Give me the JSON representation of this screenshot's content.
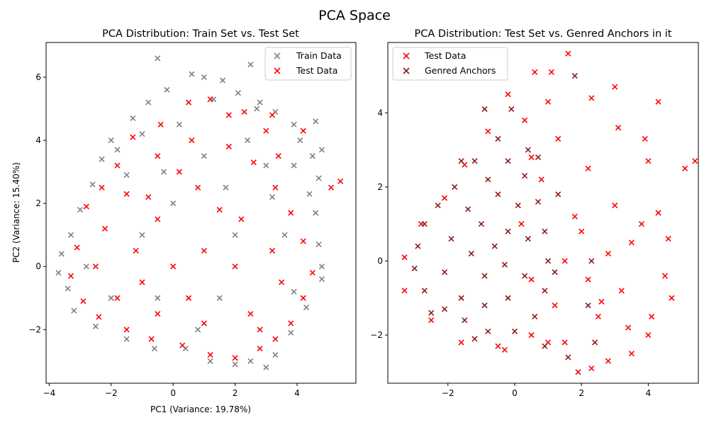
{
  "figure": {
    "suptitle": "PCA Space"
  },
  "chart_data": [
    {
      "type": "scatter",
      "title": "PCA Distribution: Train Set vs. Test Set",
      "xlabel": "PC1 (Variance: 19.78%)",
      "ylabel": "PC2 (Variance: 15.40%)",
      "xlim": [
        -4.1,
        5.9
      ],
      "ylim": [
        -3.7,
        7.1
      ],
      "xticks": [
        -4,
        -2,
        0,
        2,
        4
      ],
      "xtick_labels": [
        "−4",
        "−2",
        "0",
        "2",
        "4"
      ],
      "yticks": [
        -2,
        0,
        2,
        4,
        6
      ],
      "ytick_labels": [
        "−2",
        "0",
        "2",
        "4",
        "6"
      ],
      "grid": false,
      "legend_position": "top-right",
      "marker": "x",
      "series": [
        {
          "name": "Train Data",
          "color": "#808080",
          "points": [
            [
              -0.5,
              6.6
            ],
            [
              2.5,
              6.4
            ],
            [
              0.6,
              6.1
            ],
            [
              1.0,
              6.0
            ],
            [
              1.6,
              5.9
            ],
            [
              -0.2,
              5.6
            ],
            [
              2.1,
              5.5
            ],
            [
              -0.8,
              5.2
            ],
            [
              2.8,
              5.2
            ],
            [
              1.3,
              5.3
            ],
            [
              -1.3,
              4.7
            ],
            [
              3.3,
              4.9
            ],
            [
              3.9,
              4.5
            ],
            [
              4.6,
              4.6
            ],
            [
              -2.0,
              4.0
            ],
            [
              4.1,
              4.0
            ],
            [
              -1.8,
              3.7
            ],
            [
              4.8,
              3.7
            ],
            [
              -2.3,
              3.4
            ],
            [
              4.5,
              3.5
            ],
            [
              -2.6,
              2.6
            ],
            [
              4.7,
              2.8
            ],
            [
              -3.0,
              1.8
            ],
            [
              4.4,
              2.3
            ],
            [
              -3.3,
              1.0
            ],
            [
              4.6,
              1.7
            ],
            [
              -3.6,
              0.4
            ],
            [
              4.7,
              0.7
            ],
            [
              -3.7,
              -0.2
            ],
            [
              4.8,
              0.0
            ],
            [
              -3.4,
              -0.7
            ],
            [
              4.8,
              -0.4
            ],
            [
              -3.2,
              -1.4
            ],
            [
              4.3,
              -1.3
            ],
            [
              -2.5,
              -1.9
            ],
            [
              3.8,
              -2.1
            ],
            [
              -1.5,
              -2.3
            ],
            [
              3.3,
              -2.8
            ],
            [
              -0.6,
              -2.6
            ],
            [
              3.0,
              -3.2
            ],
            [
              0.4,
              -2.6
            ],
            [
              1.2,
              -3.0
            ],
            [
              2.0,
              -3.1
            ],
            [
              2.5,
              -3.0
            ],
            [
              -1.0,
              1.0
            ],
            [
              0.0,
              2.0
            ],
            [
              1.0,
              3.5
            ],
            [
              2.0,
              1.0
            ],
            [
              1.5,
              -1.0
            ],
            [
              -0.5,
              -1.0
            ],
            [
              3.0,
              3.2
            ],
            [
              2.4,
              4.0
            ],
            [
              0.2,
              4.5
            ],
            [
              -1.5,
              2.9
            ],
            [
              -2.8,
              0.0
            ],
            [
              3.6,
              1.0
            ],
            [
              3.9,
              -0.8
            ],
            [
              0.8,
              -2.0
            ],
            [
              -2.0,
              -1.0
            ],
            [
              1.7,
              2.5
            ],
            [
              3.2,
              2.2
            ],
            [
              -0.3,
              3.0
            ],
            [
              2.7,
              5.0
            ],
            [
              -1.0,
              4.2
            ],
            [
              3.9,
              3.2
            ]
          ]
        },
        {
          "name": "Test Data",
          "color": "#ff0000",
          "points": [
            [
              5.4,
              2.7
            ],
            [
              5.1,
              2.5
            ],
            [
              4.2,
              4.3
            ],
            [
              3.0,
              4.3
            ],
            [
              3.4,
              3.5
            ],
            [
              3.2,
              4.8
            ],
            [
              2.3,
              4.9
            ],
            [
              1.2,
              5.3
            ],
            [
              1.8,
              4.8
            ],
            [
              0.5,
              5.2
            ],
            [
              -0.4,
              4.5
            ],
            [
              -1.3,
              4.1
            ],
            [
              -1.8,
              3.2
            ],
            [
              -2.3,
              2.5
            ],
            [
              -2.8,
              1.9
            ],
            [
              -3.1,
              0.6
            ],
            [
              -3.3,
              -0.3
            ],
            [
              -2.9,
              -1.1
            ],
            [
              -2.4,
              -1.6
            ],
            [
              -1.5,
              -2.0
            ],
            [
              -0.7,
              -2.3
            ],
            [
              0.3,
              -2.5
            ],
            [
              1.2,
              -2.8
            ],
            [
              2.0,
              -2.9
            ],
            [
              2.8,
              -2.6
            ],
            [
              3.3,
              -2.3
            ],
            [
              3.8,
              -1.8
            ],
            [
              4.2,
              -1.0
            ],
            [
              4.5,
              -0.2
            ],
            [
              4.2,
              0.8
            ],
            [
              3.8,
              1.7
            ],
            [
              3.3,
              2.5
            ],
            [
              2.6,
              3.3
            ],
            [
              1.8,
              3.8
            ],
            [
              0.6,
              4.0
            ],
            [
              -0.5,
              3.5
            ],
            [
              -1.5,
              2.3
            ],
            [
              -2.2,
              1.2
            ],
            [
              -2.5,
              0.0
            ],
            [
              -1.8,
              -1.0
            ],
            [
              -0.5,
              -1.5
            ],
            [
              1.0,
              -1.8
            ],
            [
              2.5,
              -1.5
            ],
            [
              3.5,
              -0.5
            ],
            [
              3.2,
              0.5
            ],
            [
              2.2,
              1.5
            ],
            [
              0.8,
              2.5
            ],
            [
              -0.5,
              1.5
            ],
            [
              -1.2,
              0.5
            ],
            [
              0.0,
              0.0
            ],
            [
              1.0,
              0.5
            ],
            [
              2.0,
              0.0
            ],
            [
              0.5,
              -1.0
            ],
            [
              -1.0,
              -0.5
            ],
            [
              1.5,
              1.8
            ],
            [
              0.2,
              3.0
            ],
            [
              -0.8,
              2.2
            ],
            [
              2.8,
              -2.0
            ]
          ]
        }
      ]
    },
    {
      "type": "scatter",
      "title": "PCA Distribution: Test Set vs. Genred Anchors in it",
      "xlabel": "",
      "ylabel": "",
      "xlim": [
        -3.8,
        5.5
      ],
      "ylim": [
        -3.3,
        5.9
      ],
      "xticks": [
        -2,
        0,
        2,
        4
      ],
      "xtick_labels": [
        "−2",
        "0",
        "2",
        "4"
      ],
      "yticks": [
        -2,
        0,
        2,
        4
      ],
      "ytick_labels": [
        "−2",
        "0",
        "2",
        "4"
      ],
      "grid": false,
      "legend_position": "top-left",
      "marker": "x",
      "series": [
        {
          "name": "Test Data",
          "color": "#ff0000",
          "points": [
            [
              5.4,
              2.7
            ],
            [
              5.1,
              2.5
            ],
            [
              4.3,
              4.3
            ],
            [
              1.6,
              5.6
            ],
            [
              0.6,
              5.1
            ],
            [
              1.1,
              5.1
            ],
            [
              2.3,
              4.4
            ],
            [
              3.0,
              4.7
            ],
            [
              3.1,
              3.6
            ],
            [
              3.9,
              3.3
            ],
            [
              4.0,
              2.7
            ],
            [
              4.3,
              1.3
            ],
            [
              4.6,
              0.6
            ],
            [
              4.5,
              -0.4
            ],
            [
              4.7,
              -1.0
            ],
            [
              4.1,
              -1.5
            ],
            [
              4.0,
              -2.0
            ],
            [
              3.5,
              -2.5
            ],
            [
              2.8,
              -2.7
            ],
            [
              2.3,
              -2.9
            ],
            [
              1.9,
              -3.0
            ],
            [
              1.0,
              -2.2
            ],
            [
              -0.3,
              -2.4
            ],
            [
              -0.2,
              4.5
            ],
            [
              -0.8,
              3.5
            ],
            [
              -1.5,
              2.6
            ],
            [
              -2.1,
              1.7
            ],
            [
              -2.8,
              1.0
            ],
            [
              -3.3,
              0.1
            ],
            [
              -3.3,
              -0.8
            ],
            [
              -2.5,
              -1.6
            ],
            [
              -1.6,
              -2.2
            ],
            [
              -0.5,
              -2.3
            ],
            [
              0.5,
              -2.0
            ],
            [
              1.5,
              -2.2
            ],
            [
              2.5,
              -1.5
            ],
            [
              3.2,
              -0.8
            ],
            [
              3.5,
              0.5
            ],
            [
              3.0,
              1.5
            ],
            [
              2.2,
              2.5
            ],
            [
              1.3,
              3.3
            ],
            [
              0.3,
              3.8
            ],
            [
              1.5,
              0.0
            ],
            [
              2.2,
              -0.5
            ],
            [
              2.8,
              0.2
            ],
            [
              1.8,
              1.2
            ],
            [
              0.8,
              2.2
            ],
            [
              0.2,
              1.0
            ],
            [
              0.5,
              -0.5
            ],
            [
              1.2,
              -1.2
            ],
            [
              2.0,
              0.8
            ],
            [
              2.6,
              -1.1
            ],
            [
              3.4,
              -1.8
            ],
            [
              3.8,
              1.0
            ],
            [
              1.0,
              4.3
            ],
            [
              0.5,
              2.8
            ]
          ]
        },
        {
          "name": "Genred Anchors",
          "color": "#8b1a1a",
          "points": [
            [
              1.8,
              5.0
            ],
            [
              -0.9,
              4.1
            ],
            [
              -0.1,
              4.1
            ],
            [
              0.4,
              3.0
            ],
            [
              -0.5,
              3.3
            ],
            [
              -1.2,
              2.7
            ],
            [
              -1.8,
              2.0
            ],
            [
              -2.3,
              1.5
            ],
            [
              -2.7,
              1.0
            ],
            [
              -2.9,
              0.4
            ],
            [
              -3.0,
              -0.2
            ],
            [
              -2.7,
              -0.8
            ],
            [
              -2.1,
              -1.3
            ],
            [
              -1.5,
              -1.6
            ],
            [
              -0.8,
              -1.9
            ],
            [
              0.0,
              -1.9
            ],
            [
              0.6,
              -1.5
            ],
            [
              0.9,
              -0.8
            ],
            [
              1.0,
              0.0
            ],
            [
              0.9,
              0.8
            ],
            [
              0.7,
              1.6
            ],
            [
              0.3,
              2.3
            ],
            [
              -0.2,
              2.7
            ],
            [
              -0.8,
              2.2
            ],
            [
              -1.4,
              1.4
            ],
            [
              -1.9,
              0.6
            ],
            [
              -2.1,
              -0.3
            ],
            [
              -1.6,
              -1.0
            ],
            [
              -0.9,
              -1.2
            ],
            [
              -0.2,
              -1.0
            ],
            [
              0.3,
              -0.4
            ],
            [
              0.4,
              0.6
            ],
            [
              0.1,
              1.5
            ],
            [
              -0.5,
              1.8
            ],
            [
              -1.0,
              1.0
            ],
            [
              -1.3,
              0.2
            ],
            [
              -0.9,
              -0.4
            ],
            [
              -0.3,
              -0.1
            ],
            [
              -0.2,
              0.8
            ],
            [
              -0.6,
              0.4
            ],
            [
              -1.6,
              2.7
            ],
            [
              0.7,
              2.8
            ],
            [
              1.3,
              1.8
            ],
            [
              1.2,
              -0.3
            ],
            [
              2.2,
              -1.2
            ],
            [
              2.3,
              0.0
            ],
            [
              1.6,
              -2.6
            ],
            [
              2.4,
              -2.2
            ],
            [
              0.9,
              -2.3
            ],
            [
              -1.2,
              -2.1
            ],
            [
              -2.5,
              -1.4
            ]
          ]
        }
      ]
    }
  ]
}
